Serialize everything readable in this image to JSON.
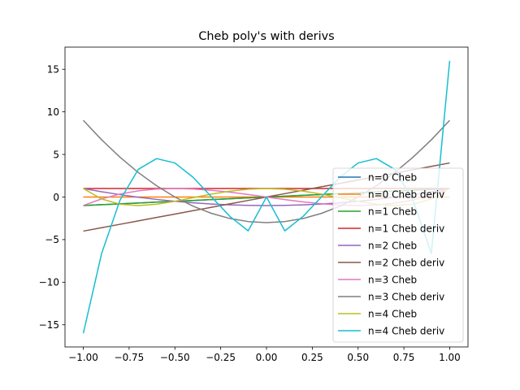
{
  "chart_data": {
    "type": "line",
    "title": "Cheb poly's with derivs",
    "xlabel": "",
    "ylabel": "",
    "xlim": [
      -1.1,
      1.1
    ],
    "ylim": [
      -17.6,
      17.6
    ],
    "x_ticks": [
      -1.0,
      -0.75,
      -0.5,
      -0.25,
      0.0,
      0.25,
      0.5,
      0.75,
      1.0
    ],
    "x_tick_labels": [
      "−1.00",
      "−0.75",
      "−0.50",
      "−0.25",
      "0.00",
      "0.25",
      "0.50",
      "0.75",
      "1.00"
    ],
    "y_ticks": [
      -15,
      -10,
      -5,
      0,
      5,
      10,
      15
    ],
    "y_tick_labels": [
      "−15",
      "−10",
      "−5",
      "0",
      "5",
      "10",
      "15"
    ],
    "grid": false,
    "legend_position": "lower-right",
    "x": [
      -1.0,
      -0.9,
      -0.8,
      -0.7,
      -0.6,
      -0.5,
      -0.4,
      -0.3,
      -0.2,
      -0.1,
      0.0,
      0.1,
      0.2,
      0.3,
      0.4,
      0.5,
      0.6,
      0.7,
      0.8,
      0.9,
      1.0
    ],
    "series": [
      {
        "name": "n=0 Cheb",
        "color": "#1f77b4",
        "values": [
          -1.0,
          -0.9,
          -0.8,
          -0.7,
          -0.6,
          -0.5,
          -0.4,
          -0.3,
          -0.2,
          -0.1,
          0.0,
          0.1,
          0.2,
          0.3,
          0.4,
          0.5,
          0.6,
          0.7,
          0.8,
          0.9,
          1.0
        ]
      },
      {
        "name": "n=0 Cheb deriv",
        "color": "#ff7f0e",
        "values": [
          0,
          0,
          0,
          0,
          0,
          0,
          0,
          0,
          0,
          0,
          0,
          0,
          0,
          0,
          0,
          0,
          0,
          0,
          0,
          0,
          0
        ]
      },
      {
        "name": "n=1 Cheb",
        "color": "#2ca02c",
        "values": [
          -1.0,
          -0.9,
          -0.8,
          -0.7,
          -0.6,
          -0.5,
          -0.4,
          -0.3,
          -0.2,
          -0.1,
          0.0,
          0.1,
          0.2,
          0.3,
          0.4,
          0.5,
          0.6,
          0.7,
          0.8,
          0.9,
          1.0
        ]
      },
      {
        "name": "n=1 Cheb deriv",
        "color": "#d62728",
        "values": [
          1,
          1,
          1,
          1,
          1,
          1,
          1,
          1,
          1,
          1,
          1,
          1,
          1,
          1,
          1,
          1,
          1,
          1,
          1,
          1,
          1
        ]
      },
      {
        "name": "n=2 Cheb",
        "color": "#9467bd",
        "values": [
          1.0,
          0.62,
          0.28,
          -0.02,
          -0.28,
          -0.5,
          -0.68,
          -0.82,
          -0.92,
          -0.98,
          -1.0,
          -0.98,
          -0.92,
          -0.82,
          -0.68,
          -0.5,
          -0.28,
          -0.02,
          0.28,
          0.62,
          1.0
        ]
      },
      {
        "name": "n=2 Cheb deriv",
        "color": "#8c564b",
        "values": [
          -4.0,
          -3.6,
          -3.2,
          -2.8,
          -2.4,
          -2.0,
          -1.6,
          -1.2,
          -0.8,
          -0.4,
          0.0,
          0.4,
          0.8,
          1.2,
          1.6,
          2.0,
          2.4,
          2.8,
          3.2,
          3.6,
          4.0
        ]
      },
      {
        "name": "n=3 Cheb",
        "color": "#e377c2",
        "values": [
          -1.0,
          -0.216,
          0.352,
          0.728,
          0.936,
          1.0,
          0.944,
          0.792,
          0.568,
          0.296,
          0.0,
          -0.296,
          -0.568,
          -0.792,
          -0.944,
          -1.0,
          -0.936,
          -0.728,
          -0.352,
          0.216,
          1.0
        ]
      },
      {
        "name": "n=3 Cheb deriv",
        "color": "#7f7f7f",
        "values": [
          9.0,
          6.72,
          4.68,
          2.88,
          1.32,
          0.0,
          -1.08,
          -1.92,
          -2.52,
          -2.88,
          -3.0,
          -2.88,
          -2.52,
          -1.92,
          -1.08,
          0.0,
          1.32,
          2.88,
          4.68,
          6.72,
          9.0
        ]
      },
      {
        "name": "n=4 Cheb",
        "color": "#bcbd22",
        "values": [
          1.0,
          -0.2312,
          -0.8432,
          -0.9992,
          -0.8432,
          -0.5,
          -0.0752,
          0.3448,
          0.6928,
          0.9208,
          1.0,
          0.9208,
          0.6928,
          0.3448,
          -0.0752,
          -0.5,
          -0.8432,
          -0.9992,
          -0.8432,
          -0.2312,
          1.0
        ]
      },
      {
        "name": "n=4 Cheb deriv",
        "color": "#17becf",
        "values": [
          -16.0,
          -6.624,
          -0.384,
          3.248,
          4.512,
          4.0,
          2.304,
          0.016,
          -2.272,
          -3.968,
          0.0,
          -3.968,
          -2.272,
          0.016,
          2.304,
          4.0,
          4.512,
          3.248,
          -0.384,
          -6.624,
          16.0
        ]
      }
    ]
  }
}
